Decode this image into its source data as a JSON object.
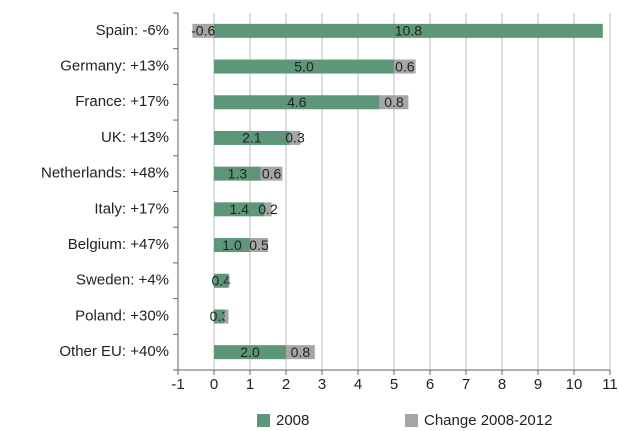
{
  "chart_data": {
    "type": "stacked-barh",
    "categories": [
      "Spain: -6%",
      "Germany: +13%",
      "France: +17%",
      "UK: +13%",
      "Netherlands: +48%",
      "Italy: +17%",
      "Belgium: +47%",
      "Sweden: +4%",
      "Poland: +30%",
      "Other EU: +40%"
    ],
    "series": [
      {
        "name": "2008",
        "color": "#5e9679",
        "values": [
          10.8,
          5.0,
          4.6,
          2.1,
          1.3,
          1.4,
          1.0,
          0.4,
          0.3,
          2.0
        ],
        "value_labels": [
          "10.8",
          "5.0",
          "4.6",
          "2.1",
          "1.3",
          "1.4",
          "1.0",
          "0.4",
          "0.3",
          "2.0"
        ]
      },
      {
        "name": "Change 2008-2012",
        "color": "#a6a6a6",
        "values": [
          -0.6,
          0.6,
          0.8,
          0.3,
          0.6,
          0.2,
          0.5,
          0.02,
          0.1,
          0.8
        ],
        "value_labels": [
          "-0.6",
          "0.6",
          "0.8",
          "0.3",
          "0.6",
          "0.2",
          "0.5",
          null,
          null,
          "0.8"
        ]
      }
    ],
    "xlim": [
      -1,
      11
    ],
    "xticks": [
      -1,
      0,
      1,
      2,
      3,
      4,
      5,
      6,
      7,
      8,
      9,
      10,
      11
    ],
    "grid": true
  }
}
